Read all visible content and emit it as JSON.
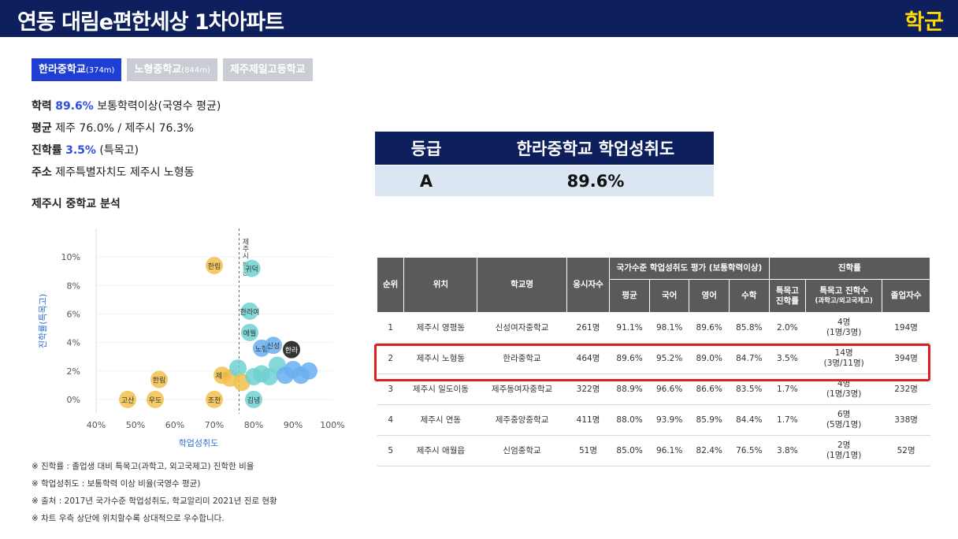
{
  "header": {
    "title": "연동 대림e편한세상 1차아파트",
    "category": "학군",
    "title_bg": "#0d1f5c",
    "category_color": "#ffd900"
  },
  "tabs": [
    {
      "label": "한라중학교",
      "distance": "(374m)",
      "active": true
    },
    {
      "label": "노형중학교",
      "distance": "(844m)",
      "active": false
    },
    {
      "label": "제주제일고등학교",
      "distance": "",
      "active": false
    }
  ],
  "info": {
    "achievement_label": "학력",
    "achievement_value": "89.6%",
    "achievement_desc": "보통학력이상(국영수 평균)",
    "average_label": "평균",
    "average_value": "제주 76.0% / 제주시 76.3%",
    "advance_label": "진학률",
    "advance_value": "3.5%",
    "advance_desc": "(특목고)",
    "address_label": "주소",
    "address_value": "제주특별자치도 제주시 노형동"
  },
  "analysis_title": "제주시 중학교 분석",
  "chart_data": {
    "type": "scatter",
    "xlabel": "학업성취도",
    "ylabel": "진학률(특목고)",
    "xlim": [
      40,
      100
    ],
    "ylim": [
      -1,
      12
    ],
    "x_ticks": [
      "40%",
      "50%",
      "60%",
      "70%",
      "80%",
      "90%",
      "100%"
    ],
    "y_ticks": [
      "0%",
      "2%",
      "4%",
      "6%",
      "8%",
      "10%"
    ],
    "vertical_line_label": "제주시 평균",
    "points": [
      {
        "label": "한림",
        "x": 70,
        "y": 9.4,
        "group": "yellow"
      },
      {
        "label": "귀덕",
        "x": 79.5,
        "y": 9.2,
        "group": "teal"
      },
      {
        "label": "한라여",
        "x": 79,
        "y": 6.2,
        "group": "teal"
      },
      {
        "label": "애월",
        "x": 79,
        "y": 4.7,
        "group": "teal"
      },
      {
        "label": "노형",
        "x": 82,
        "y": 3.6,
        "group": "blue"
      },
      {
        "label": "신성",
        "x": 85,
        "y": 3.8,
        "group": "blue"
      },
      {
        "label": "한라",
        "x": 89.6,
        "y": 3.5,
        "group": "black"
      },
      {
        "label": "한림",
        "x": 56,
        "y": 1.4,
        "group": "yellow"
      },
      {
        "label": "고산",
        "x": 48,
        "y": 0,
        "group": "yellow"
      },
      {
        "label": "우도",
        "x": 55,
        "y": 0,
        "group": "yellow"
      },
      {
        "label": "조천",
        "x": 70,
        "y": 0,
        "group": "yellow"
      },
      {
        "label": "김녕",
        "x": 80,
        "y": 0,
        "group": "teal"
      },
      {
        "label": "제주",
        "x": 72,
        "y": 1.7,
        "group": "yellow"
      },
      {
        "label": "",
        "x": 74,
        "y": 1.5,
        "group": "yellow"
      },
      {
        "label": "",
        "x": 76,
        "y": 2.2,
        "group": "teal"
      },
      {
        "label": "",
        "x": 77,
        "y": 1.2,
        "group": "yellow"
      },
      {
        "label": "",
        "x": 80,
        "y": 1.6,
        "group": "teal"
      },
      {
        "label": "",
        "x": 82,
        "y": 1.8,
        "group": "teal"
      },
      {
        "label": "",
        "x": 84,
        "y": 1.6,
        "group": "teal"
      },
      {
        "label": "",
        "x": 86,
        "y": 2.4,
        "group": "teal"
      },
      {
        "label": "",
        "x": 88,
        "y": 1.7,
        "group": "blue"
      },
      {
        "label": "",
        "x": 90,
        "y": 2.1,
        "group": "blue"
      },
      {
        "label": "",
        "x": 92,
        "y": 1.7,
        "group": "blue"
      },
      {
        "label": "",
        "x": 94,
        "y": 2.0,
        "group": "blue"
      }
    ],
    "colors": {
      "yellow": "#f2c14e",
      "teal": "#6fd1d1",
      "blue": "#6aaef0",
      "black": "#111111"
    }
  },
  "notes": [
    "※ 진학률 : 졸업생 대비 특목고(과학고, 외고국제고) 진학한 비율",
    "※ 학업성취도 : 보통학력 이상 비율(국영수 평균)",
    "※ 출처 : 2017년 국가수준 학업성취도, 학교알리미 2021년 진로 현황",
    "※ 차트 우측 상단에 위치할수록 상대적으로 우수합니다."
  ],
  "grade_table": {
    "header_grade": "등급",
    "header_school": "한라중학교 학업성취도",
    "grade": "A",
    "value": "89.6%"
  },
  "school_table": {
    "headers": {
      "rank": "순위",
      "location": "위치",
      "school": "학교명",
      "students": "응시자수",
      "achievement_group": "국가수준 학업성취도 평가 (보통학력이상)",
      "avg": "평균",
      "kor": "국어",
      "eng": "영어",
      "math": "수학",
      "advance_group": "진학률",
      "adv_rate": "특목고 진학률",
      "adv_count": "특목고 진학수",
      "adv_count_sub": "(과학고/외고국제고)",
      "graduates": "졸업자수"
    },
    "rows": [
      {
        "rank": "1",
        "location": "제주시 영평동",
        "school": "신성여자중학교",
        "students": "261명",
        "avg": "91.1%",
        "kor": "98.1%",
        "eng": "89.6%",
        "math": "85.8%",
        "adv_rate": "2.0%",
        "adv_count": "4명",
        "adv_detail": "(1명/3명)",
        "graduates": "194명"
      },
      {
        "rank": "2",
        "location": "제주시 노형동",
        "school": "한라중학교",
        "students": "464명",
        "avg": "89.6%",
        "kor": "95.2%",
        "eng": "89.0%",
        "math": "84.7%",
        "adv_rate": "3.5%",
        "adv_count": "14명",
        "adv_detail": "(3명/11명)",
        "graduates": "394명"
      },
      {
        "rank": "3",
        "location": "제주시 일도이동",
        "school": "제주동여자중학교",
        "students": "322명",
        "avg": "88.9%",
        "kor": "96.6%",
        "eng": "86.6%",
        "math": "83.5%",
        "adv_rate": "1.7%",
        "adv_count": "4명",
        "adv_detail": "(1명/3명)",
        "graduates": "232명"
      },
      {
        "rank": "4",
        "location": "제주시 연동",
        "school": "제주중앙중학교",
        "students": "411명",
        "avg": "88.0%",
        "kor": "93.9%",
        "eng": "85.9%",
        "math": "84.4%",
        "adv_rate": "1.7%",
        "adv_count": "6명",
        "adv_detail": "(5명/1명)",
        "graduates": "338명"
      },
      {
        "rank": "5",
        "location": "제주시 애월읍",
        "school": "신엄중학교",
        "students": "51명",
        "avg": "85.0%",
        "kor": "96.1%",
        "eng": "82.4%",
        "math": "76.5%",
        "adv_rate": "3.8%",
        "adv_count": "2명",
        "adv_detail": "(1명/1명)",
        "graduates": "52명"
      }
    ]
  }
}
